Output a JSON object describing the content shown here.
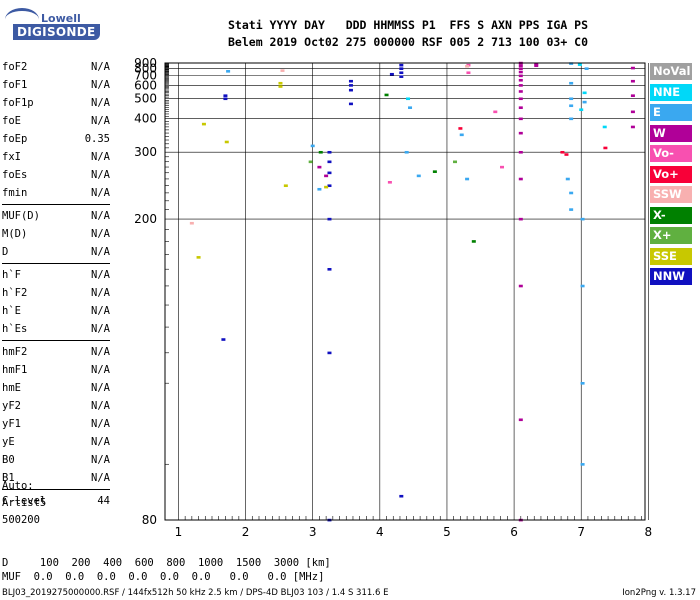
{
  "logo": {
    "line1": "Lowell",
    "line2": "DIGISONDE"
  },
  "header": {
    "line1": "Stati YYYY DAY   DDD HHMMSS P1  FFS S AXN PPS IGA PS",
    "line2": "Belem 2019 Oct02 275 000000 RSF 005 2 713 100 03+ C0"
  },
  "params": [
    [
      [
        "foF2",
        "N/A"
      ],
      [
        "foF1",
        "N/A"
      ],
      [
        "foF1p",
        "N/A"
      ],
      [
        "foE",
        "N/A"
      ],
      [
        "foEp",
        "0.35"
      ],
      [
        "fxI",
        "N/A"
      ],
      [
        "foEs",
        "N/A"
      ],
      [
        "fmin",
        "N/A"
      ]
    ],
    [
      [
        "MUF(D)",
        "N/A"
      ],
      [
        "M(D)",
        "N/A"
      ],
      [
        "D",
        "N/A"
      ]
    ],
    [
      [
        "h`F",
        "N/A"
      ],
      [
        "h`F2",
        "N/A"
      ],
      [
        "h`E",
        "N/A"
      ],
      [
        "h`Es",
        "N/A"
      ]
    ],
    [
      [
        "hmF2",
        "N/A"
      ],
      [
        "hmF1",
        "N/A"
      ],
      [
        "hmE",
        "N/A"
      ],
      [
        "yF2",
        "N/A"
      ],
      [
        "yF1",
        "N/A"
      ],
      [
        "yE",
        "N/A"
      ],
      [
        "B0",
        "N/A"
      ],
      [
        "B1",
        "N/A"
      ]
    ],
    [
      [
        "C-level",
        "44"
      ]
    ]
  ],
  "auto": {
    "l1": "Auto:",
    "l2": "Artist5",
    "l3": "500200"
  },
  "legend": [
    {
      "label": "NoVal",
      "color": "#a0a0a0"
    },
    {
      "label": "NNE",
      "color": "#00d8f8"
    },
    {
      "label": "E",
      "color": "#3aa8f0"
    },
    {
      "label": "W",
      "color": "#b00098"
    },
    {
      "label": "Vo-",
      "color": "#f850b0"
    },
    {
      "label": "Vo+",
      "color": "#f80038"
    },
    {
      "label": "SSW",
      "color": "#f8b0b0"
    },
    {
      "label": "X-",
      "color": "#008000"
    },
    {
      "label": "X+",
      "color": "#60b040"
    },
    {
      "label": "SSE",
      "color": "#c8c800"
    },
    {
      "label": "NNW",
      "color": "#1010c0"
    }
  ],
  "footer": {
    "d_line": "D     100  200  400  600  800  1000  1500  3000 [km]",
    "muf_line": "MUF  0.0  0.0  0.0  0.0  0.0  0.0   0.0   0.0 [MHz]",
    "file_line": "BLJ03_2019275000000.RSF / 144fx512h 50 kHz 2.5 km / DPS-4D BLJ03 103 / 1.4 S 311.6 E",
    "version": "Ion2Png v. 1.3.17"
  },
  "chart_data": {
    "type": "scatter",
    "title": "",
    "xlabel": "",
    "ylabel": "",
    "xlim": [
      0.8,
      7.95
    ],
    "ylim": [
      80,
      900
    ],
    "yscale": "reciprocal",
    "xticks": [
      "1",
      "2",
      "3",
      "4",
      "5",
      "6",
      "7",
      "8"
    ],
    "yticks": [
      "80",
      "200",
      "300",
      "400",
      "500",
      "600",
      "700",
      "800",
      "900"
    ],
    "grid": true,
    "series": [
      {
        "name": "NNW",
        "color": "#1010c0",
        "points": [
          [
            3.25,
            80
          ],
          [
            3.25,
            120
          ],
          [
            3.25,
            160
          ],
          [
            3.25,
            200
          ],
          [
            3.25,
            240
          ],
          [
            3.25,
            260
          ],
          [
            3.25,
            280
          ],
          [
            3.25,
            300
          ],
          [
            3.57,
            470
          ],
          [
            3.57,
            560
          ],
          [
            3.57,
            600
          ],
          [
            3.57,
            640
          ],
          [
            4.32,
            860
          ],
          [
            4.32,
            800
          ],
          [
            4.32,
            740
          ],
          [
            4.32,
            690
          ],
          [
            4.18,
            720
          ],
          [
            1.7,
            520
          ],
          [
            1.7,
            500
          ],
          [
            1.67,
            125
          ],
          [
            4.32,
            84
          ]
        ]
      },
      {
        "name": "W",
        "color": "#b00098",
        "points": [
          [
            6.1,
            900
          ],
          [
            6.1,
            850
          ],
          [
            6.1,
            800
          ],
          [
            6.1,
            750
          ],
          [
            6.1,
            700
          ],
          [
            6.1,
            650
          ],
          [
            6.1,
            600
          ],
          [
            6.1,
            550
          ],
          [
            6.1,
            500
          ],
          [
            6.1,
            450
          ],
          [
            6.1,
            400
          ],
          [
            6.1,
            350
          ],
          [
            6.1,
            300
          ],
          [
            6.1,
            250
          ],
          [
            6.1,
            200
          ],
          [
            6.1,
            150
          ],
          [
            6.1,
            100
          ],
          [
            6.1,
            80
          ],
          [
            6.33,
            880
          ],
          [
            6.33,
            850
          ],
          [
            7.77,
            810
          ],
          [
            7.77,
            640
          ],
          [
            7.77,
            520
          ],
          [
            7.77,
            430
          ],
          [
            7.77,
            370
          ],
          [
            3.2,
            255
          ],
          [
            3.1,
            270
          ]
        ]
      },
      {
        "name": "E",
        "color": "#3aa8f0",
        "points": [
          [
            6.85,
            890
          ],
          [
            6.85,
            620
          ],
          [
            6.85,
            500
          ],
          [
            6.85,
            460
          ],
          [
            6.85,
            400
          ],
          [
            7.05,
            480
          ],
          [
            7.08,
            800
          ],
          [
            6.8,
            250
          ],
          [
            6.85,
            230
          ],
          [
            6.85,
            210
          ],
          [
            7.02,
            200
          ],
          [
            7.02,
            150
          ],
          [
            7.02,
            110
          ],
          [
            7.02,
            90
          ],
          [
            3.1,
            235
          ],
          [
            3.0,
            315
          ],
          [
            4.4,
            300
          ],
          [
            4.45,
            450
          ],
          [
            4.58,
            255
          ],
          [
            5.22,
            345
          ],
          [
            5.3,
            250
          ],
          [
            1.74,
            760
          ]
        ]
      },
      {
        "name": "NNE",
        "color": "#00d8f8",
        "points": [
          [
            6.98,
            870
          ],
          [
            7.05,
            540
          ],
          [
            7.0,
            440
          ],
          [
            7.35,
            370
          ],
          [
            4.42,
            500
          ]
        ]
      },
      {
        "name": "Vo+",
        "color": "#f80038",
        "points": [
          [
            6.72,
            300
          ],
          [
            6.78,
            295
          ],
          [
            5.2,
            365
          ],
          [
            7.36,
            310
          ]
        ]
      },
      {
        "name": "Vo-",
        "color": "#f850b0",
        "points": [
          [
            5.32,
            860
          ],
          [
            5.32,
            740
          ],
          [
            5.72,
            430
          ],
          [
            4.15,
            245
          ],
          [
            5.82,
            270
          ]
        ]
      },
      {
        "name": "SSW",
        "color": "#f8b0b0",
        "points": [
          [
            2.55,
            770
          ],
          [
            5.3,
            840
          ],
          [
            1.2,
            196
          ]
        ]
      },
      {
        "name": "X-",
        "color": "#008000",
        "points": [
          [
            4.1,
            525
          ],
          [
            3.12,
            300
          ],
          [
            5.4,
            180
          ],
          [
            4.82,
            262
          ]
        ]
      },
      {
        "name": "X+",
        "color": "#60b040",
        "points": [
          [
            2.97,
            280
          ],
          [
            5.12,
            280
          ]
        ]
      },
      {
        "name": "SSE",
        "color": "#c8c800",
        "points": [
          [
            2.52,
            620
          ],
          [
            2.52,
            590
          ],
          [
            1.38,
            380
          ],
          [
            1.3,
            168
          ],
          [
            1.72,
            325
          ],
          [
            2.6,
            240
          ],
          [
            3.2,
            238
          ]
        ]
      }
    ]
  }
}
